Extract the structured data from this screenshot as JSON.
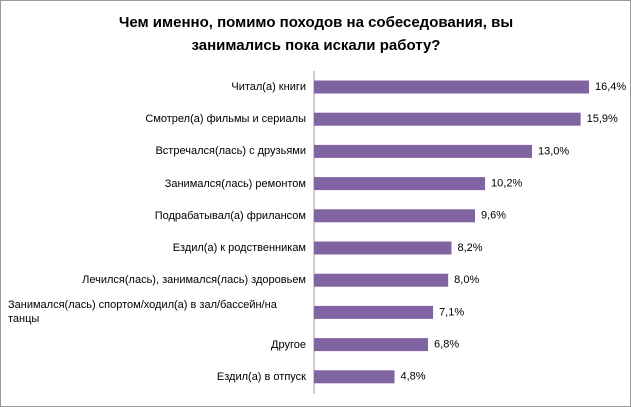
{
  "chart_data": {
    "type": "hbar",
    "title": "Чем именно, помимо походов на собеседования, вы занимались  пока искали работу?",
    "categories": [
      "Читал(а) книги",
      "Смотрел(а) фильмы и сериалы",
      "Встречался(лась) с друзьями",
      "Занимался(лась) ремонтом",
      "Подрабатывал(а) фрилансом",
      "Ездил(а) к родственникам",
      "Лечился(лась), занимался(лась) здоровьем",
      "Занимался(лась) спортом/ходил(а) в зал/бассейн/на танцы",
      "Другое",
      "Ездил(а) в отпуск"
    ],
    "values": [
      16.4,
      15.9,
      13.0,
      10.2,
      9.6,
      8.2,
      8.0,
      7.1,
      6.8,
      4.8
    ],
    "value_labels": [
      "16,4%",
      "15,9%",
      "13,0%",
      "10,2%",
      "9,6%",
      "8,2%",
      "8,0%",
      "7,1%",
      "6,8%",
      "4,8%"
    ],
    "color": "#8064a2"
  }
}
